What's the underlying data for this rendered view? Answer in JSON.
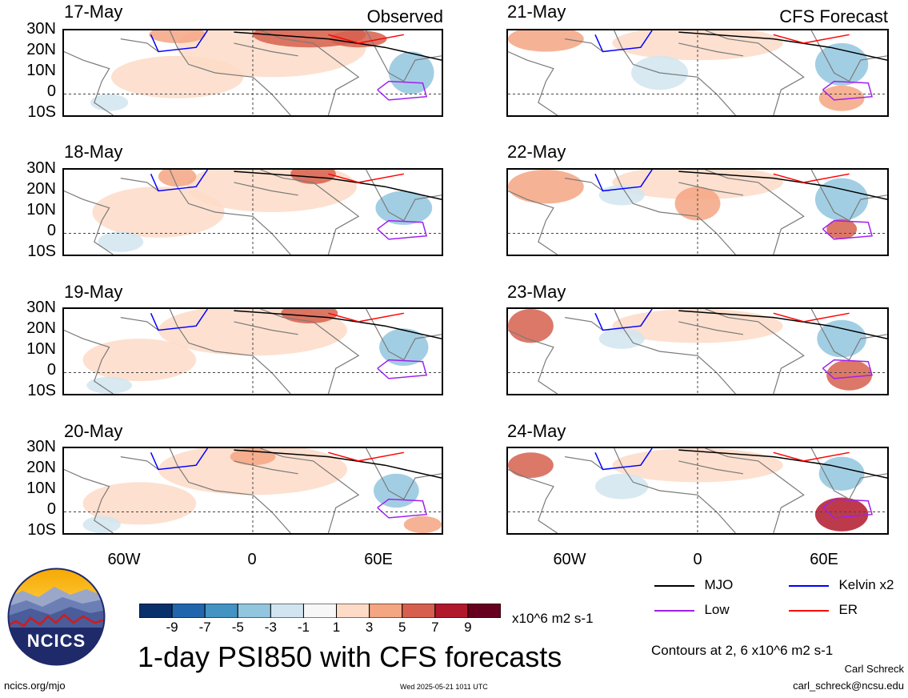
{
  "chart_data": {
    "type": "heatmap",
    "title": "1-day PSI850 with CFS forecasts",
    "variable": "PSI850",
    "units": "x10^6 m2 s-1",
    "columns": [
      {
        "label": "Observed",
        "dates": [
          "17-May",
          "18-May",
          "19-May",
          "20-May"
        ]
      },
      {
        "label": "CFS Forecast",
        "dates": [
          "21-May",
          "22-May",
          "23-May",
          "24-May"
        ]
      }
    ],
    "lat_ticks": [
      "30N",
      "20N",
      "10N",
      "0",
      "10S"
    ],
    "lat_range": [
      -10,
      30
    ],
    "lon_ticks": [
      "60W",
      "0",
      "60E"
    ],
    "lon_range": [
      -90,
      90
    ],
    "colorbar": {
      "levels": [
        "-9",
        "-7",
        "-5",
        "-3",
        "-1",
        "1",
        "3",
        "5",
        "7",
        "9"
      ],
      "colors": [
        "#08306b",
        "#2166ac",
        "#4393c3",
        "#92c5de",
        "#d1e5f0",
        "#f7f7f7",
        "#fddbc7",
        "#f4a582",
        "#d6604d",
        "#b2182b",
        "#67001f"
      ]
    },
    "contour_legend": [
      {
        "name": "MJO",
        "color": "#000000"
      },
      {
        "name": "Kelvin x2",
        "color": "#0000ff"
      },
      {
        "name": "Low",
        "color": "#a020f0"
      },
      {
        "name": "ER",
        "color": "#ff0000"
      }
    ],
    "contour_note": "Contours at 2, 6 x10^6 m2 s-1"
  },
  "footer": {
    "logo_text": "NCICS",
    "website": "ncics.org/mjo",
    "timestamp": "Wed 2025-05-21 1011 UTC",
    "author": "Carl Schreck",
    "email": "carl_schreck@ncsu.edu"
  }
}
